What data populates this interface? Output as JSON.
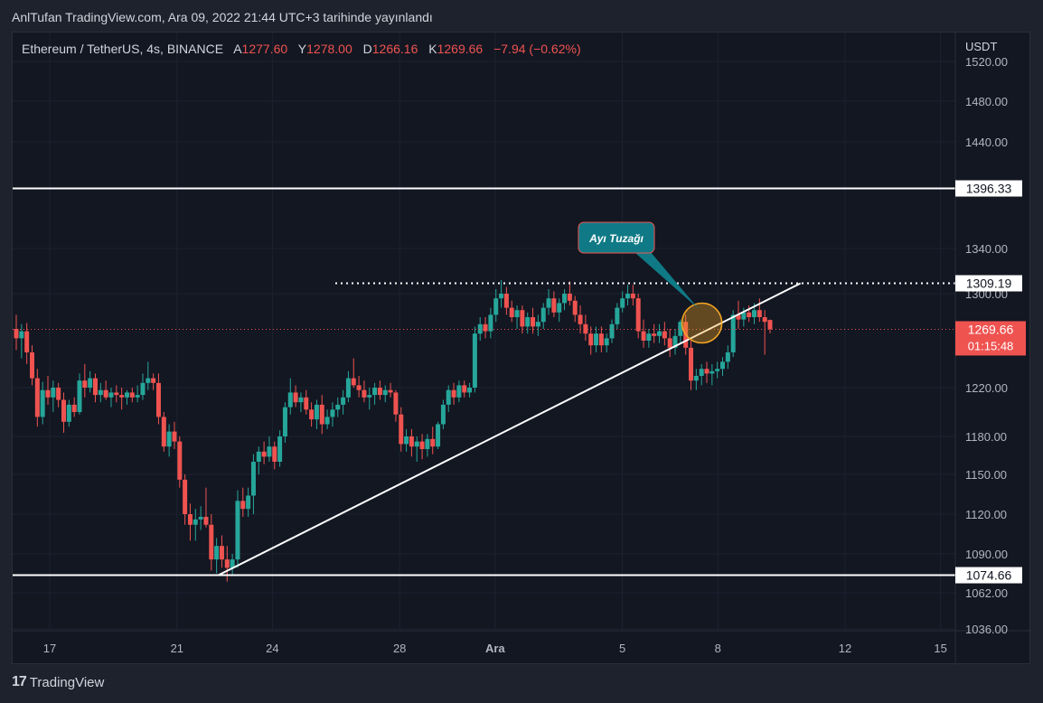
{
  "header": {
    "published": "AnlTufan TradingView.com, Ara 09, 2022 21:44 UTC+3 tarihinde yayınlandı"
  },
  "footer": {
    "brand": "TradingView"
  },
  "colors": {
    "up": "#26a69a",
    "down": "#ef5350",
    "background": "#131722",
    "text": "#d1d4dc",
    "line": "#ffffff"
  },
  "chart_data": {
    "type": "candlestick",
    "symbol": "Ethereum / TetherUS, 4s, BINANCE",
    "ohlc": {
      "a_label": "A",
      "a_value": "1277.60",
      "y_label": "Y",
      "y_value": "1278.00",
      "d_label": "D",
      "d_value": "1266.16",
      "k_label": "K",
      "k_value": "1269.66",
      "change": "−7.94 (−0.62%)"
    },
    "currency": "USDT",
    "y_ticks": [
      "1520.00",
      "1480.00",
      "1440.00",
      "1340.00",
      "1300.00",
      "1220.00",
      "1180.00",
      "1150.00",
      "1120.00",
      "1090.00",
      "1062.00",
      "1036.00"
    ],
    "x_ticks": [
      "17",
      "21",
      "24",
      "28",
      "Ara",
      "5",
      "8",
      "12",
      "15"
    ],
    "last_price": "1269.66",
    "countdown": "01:15:48",
    "levels": [
      {
        "price": 1396.33,
        "label": "1396.33",
        "style": "solid"
      },
      {
        "price": 1309.19,
        "label": "1309.19",
        "style": "dotted"
      },
      {
        "price": 1074.66,
        "label": "1074.66",
        "style": "solid"
      }
    ],
    "trendline": {
      "from": {
        "x": "Nov 22",
        "y": 1074.66
      },
      "to": {
        "x": "Dec 9",
        "y": 1309.19
      }
    },
    "annotation": {
      "text": "Ayı Tuzağı",
      "at": {
        "x": "Dec 7",
        "y": 1275
      }
    },
    "candles": [
      {
        "o": 1270,
        "h": 1282,
        "l": 1252,
        "c": 1262
      },
      {
        "o": 1262,
        "h": 1274,
        "l": 1245,
        "c": 1268
      },
      {
        "o": 1268,
        "h": 1275,
        "l": 1240,
        "c": 1250
      },
      {
        "o": 1250,
        "h": 1256,
        "l": 1222,
        "c": 1228
      },
      {
        "o": 1228,
        "h": 1236,
        "l": 1188,
        "c": 1196
      },
      {
        "o": 1196,
        "h": 1225,
        "l": 1190,
        "c": 1218
      },
      {
        "o": 1218,
        "h": 1230,
        "l": 1206,
        "c": 1212
      },
      {
        "o": 1212,
        "h": 1226,
        "l": 1200,
        "c": 1220
      },
      {
        "o": 1220,
        "h": 1224,
        "l": 1204,
        "c": 1210
      },
      {
        "o": 1210,
        "h": 1216,
        "l": 1183,
        "c": 1192
      },
      {
        "o": 1192,
        "h": 1210,
        "l": 1188,
        "c": 1206
      },
      {
        "o": 1206,
        "h": 1212,
        "l": 1196,
        "c": 1200
      },
      {
        "o": 1200,
        "h": 1232,
        "l": 1198,
        "c": 1226
      },
      {
        "o": 1226,
        "h": 1240,
        "l": 1212,
        "c": 1220
      },
      {
        "o": 1220,
        "h": 1234,
        "l": 1216,
        "c": 1228
      },
      {
        "o": 1228,
        "h": 1232,
        "l": 1208,
        "c": 1214
      },
      {
        "o": 1214,
        "h": 1224,
        "l": 1208,
        "c": 1218
      },
      {
        "o": 1218,
        "h": 1226,
        "l": 1210,
        "c": 1212
      },
      {
        "o": 1212,
        "h": 1220,
        "l": 1204,
        "c": 1216
      },
      {
        "o": 1216,
        "h": 1222,
        "l": 1208,
        "c": 1214
      },
      {
        "o": 1214,
        "h": 1220,
        "l": 1202,
        "c": 1212
      },
      {
        "o": 1212,
        "h": 1218,
        "l": 1206,
        "c": 1216
      },
      {
        "o": 1216,
        "h": 1220,
        "l": 1208,
        "c": 1212
      },
      {
        "o": 1212,
        "h": 1222,
        "l": 1208,
        "c": 1214
      },
      {
        "o": 1214,
        "h": 1232,
        "l": 1210,
        "c": 1224
      },
      {
        "o": 1224,
        "h": 1242,
        "l": 1218,
        "c": 1228
      },
      {
        "o": 1228,
        "h": 1232,
        "l": 1218,
        "c": 1224
      },
      {
        "o": 1224,
        "h": 1232,
        "l": 1190,
        "c": 1196
      },
      {
        "o": 1196,
        "h": 1200,
        "l": 1168,
        "c": 1172
      },
      {
        "o": 1172,
        "h": 1190,
        "l": 1164,
        "c": 1184
      },
      {
        "o": 1184,
        "h": 1192,
        "l": 1170,
        "c": 1176
      },
      {
        "o": 1176,
        "h": 1180,
        "l": 1140,
        "c": 1146
      },
      {
        "o": 1146,
        "h": 1150,
        "l": 1112,
        "c": 1120
      },
      {
        "o": 1120,
        "h": 1128,
        "l": 1100,
        "c": 1112
      },
      {
        "o": 1112,
        "h": 1124,
        "l": 1100,
        "c": 1116
      },
      {
        "o": 1116,
        "h": 1126,
        "l": 1108,
        "c": 1118
      },
      {
        "o": 1118,
        "h": 1140,
        "l": 1110,
        "c": 1112
      },
      {
        "o": 1112,
        "h": 1120,
        "l": 1078,
        "c": 1086
      },
      {
        "o": 1086,
        "h": 1102,
        "l": 1076,
        "c": 1096
      },
      {
        "o": 1096,
        "h": 1104,
        "l": 1080,
        "c": 1086
      },
      {
        "o": 1086,
        "h": 1096,
        "l": 1070,
        "c": 1080
      },
      {
        "o": 1080,
        "h": 1090,
        "l": 1074,
        "c": 1086
      },
      {
        "o": 1086,
        "h": 1138,
        "l": 1080,
        "c": 1130
      },
      {
        "o": 1130,
        "h": 1140,
        "l": 1118,
        "c": 1124
      },
      {
        "o": 1124,
        "h": 1140,
        "l": 1118,
        "c": 1134
      },
      {
        "o": 1134,
        "h": 1166,
        "l": 1120,
        "c": 1160
      },
      {
        "o": 1160,
        "h": 1172,
        "l": 1150,
        "c": 1168
      },
      {
        "o": 1168,
        "h": 1176,
        "l": 1158,
        "c": 1164
      },
      {
        "o": 1164,
        "h": 1180,
        "l": 1160,
        "c": 1172
      },
      {
        "o": 1172,
        "h": 1176,
        "l": 1154,
        "c": 1160
      },
      {
        "o": 1160,
        "h": 1185,
        "l": 1156,
        "c": 1180
      },
      {
        "o": 1180,
        "h": 1208,
        "l": 1175,
        "c": 1204
      },
      {
        "o": 1204,
        "h": 1228,
        "l": 1198,
        "c": 1216
      },
      {
        "o": 1216,
        "h": 1222,
        "l": 1204,
        "c": 1208
      },
      {
        "o": 1208,
        "h": 1216,
        "l": 1200,
        "c": 1212
      },
      {
        "o": 1212,
        "h": 1218,
        "l": 1198,
        "c": 1202
      },
      {
        "o": 1202,
        "h": 1208,
        "l": 1188,
        "c": 1194
      },
      {
        "o": 1194,
        "h": 1210,
        "l": 1186,
        "c": 1206
      },
      {
        "o": 1206,
        "h": 1214,
        "l": 1182,
        "c": 1190
      },
      {
        "o": 1190,
        "h": 1202,
        "l": 1186,
        "c": 1196
      },
      {
        "o": 1196,
        "h": 1208,
        "l": 1188,
        "c": 1202
      },
      {
        "o": 1202,
        "h": 1212,
        "l": 1196,
        "c": 1206
      },
      {
        "o": 1206,
        "h": 1218,
        "l": 1198,
        "c": 1212
      },
      {
        "o": 1212,
        "h": 1234,
        "l": 1208,
        "c": 1228
      },
      {
        "o": 1228,
        "h": 1245,
        "l": 1220,
        "c": 1222
      },
      {
        "o": 1222,
        "h": 1230,
        "l": 1212,
        "c": 1218
      },
      {
        "o": 1218,
        "h": 1226,
        "l": 1208,
        "c": 1212
      },
      {
        "o": 1212,
        "h": 1220,
        "l": 1202,
        "c": 1214
      },
      {
        "o": 1214,
        "h": 1224,
        "l": 1206,
        "c": 1220
      },
      {
        "o": 1220,
        "h": 1226,
        "l": 1210,
        "c": 1214
      },
      {
        "o": 1214,
        "h": 1222,
        "l": 1208,
        "c": 1218
      },
      {
        "o": 1218,
        "h": 1224,
        "l": 1212,
        "c": 1216
      },
      {
        "o": 1216,
        "h": 1218,
        "l": 1192,
        "c": 1198
      },
      {
        "o": 1198,
        "h": 1204,
        "l": 1168,
        "c": 1174
      },
      {
        "o": 1174,
        "h": 1186,
        "l": 1168,
        "c": 1180
      },
      {
        "o": 1180,
        "h": 1186,
        "l": 1164,
        "c": 1172
      },
      {
        "o": 1172,
        "h": 1180,
        "l": 1160,
        "c": 1176
      },
      {
        "o": 1176,
        "h": 1182,
        "l": 1162,
        "c": 1170
      },
      {
        "o": 1170,
        "h": 1182,
        "l": 1164,
        "c": 1178
      },
      {
        "o": 1178,
        "h": 1188,
        "l": 1166,
        "c": 1172
      },
      {
        "o": 1172,
        "h": 1192,
        "l": 1170,
        "c": 1190
      },
      {
        "o": 1190,
        "h": 1210,
        "l": 1186,
        "c": 1206
      },
      {
        "o": 1206,
        "h": 1222,
        "l": 1200,
        "c": 1218
      },
      {
        "o": 1218,
        "h": 1224,
        "l": 1206,
        "c": 1212
      },
      {
        "o": 1212,
        "h": 1226,
        "l": 1208,
        "c": 1222
      },
      {
        "o": 1222,
        "h": 1226,
        "l": 1212,
        "c": 1216
      },
      {
        "o": 1216,
        "h": 1224,
        "l": 1212,
        "c": 1220
      },
      {
        "o": 1220,
        "h": 1272,
        "l": 1216,
        "c": 1266
      },
      {
        "o": 1266,
        "h": 1280,
        "l": 1260,
        "c": 1274
      },
      {
        "o": 1274,
        "h": 1280,
        "l": 1262,
        "c": 1268
      },
      {
        "o": 1268,
        "h": 1288,
        "l": 1262,
        "c": 1282
      },
      {
        "o": 1282,
        "h": 1304,
        "l": 1276,
        "c": 1296
      },
      {
        "o": 1296,
        "h": 1312,
        "l": 1288,
        "c": 1300
      },
      {
        "o": 1300,
        "h": 1306,
        "l": 1282,
        "c": 1288
      },
      {
        "o": 1288,
        "h": 1294,
        "l": 1276,
        "c": 1280
      },
      {
        "o": 1280,
        "h": 1290,
        "l": 1270,
        "c": 1286
      },
      {
        "o": 1286,
        "h": 1290,
        "l": 1266,
        "c": 1272
      },
      {
        "o": 1272,
        "h": 1284,
        "l": 1266,
        "c": 1280
      },
      {
        "o": 1280,
        "h": 1288,
        "l": 1266,
        "c": 1272
      },
      {
        "o": 1272,
        "h": 1282,
        "l": 1264,
        "c": 1276
      },
      {
        "o": 1276,
        "h": 1292,
        "l": 1270,
        "c": 1288
      },
      {
        "o": 1288,
        "h": 1304,
        "l": 1282,
        "c": 1296
      },
      {
        "o": 1296,
        "h": 1302,
        "l": 1280,
        "c": 1284
      },
      {
        "o": 1284,
        "h": 1296,
        "l": 1276,
        "c": 1292
      },
      {
        "o": 1292,
        "h": 1304,
        "l": 1286,
        "c": 1300
      },
      {
        "o": 1300,
        "h": 1311,
        "l": 1290,
        "c": 1294
      },
      {
        "o": 1294,
        "h": 1298,
        "l": 1276,
        "c": 1282
      },
      {
        "o": 1282,
        "h": 1290,
        "l": 1266,
        "c": 1274
      },
      {
        "o": 1274,
        "h": 1282,
        "l": 1260,
        "c": 1266
      },
      {
        "o": 1266,
        "h": 1272,
        "l": 1248,
        "c": 1256
      },
      {
        "o": 1256,
        "h": 1272,
        "l": 1250,
        "c": 1266
      },
      {
        "o": 1266,
        "h": 1272,
        "l": 1250,
        "c": 1256
      },
      {
        "o": 1256,
        "h": 1266,
        "l": 1250,
        "c": 1262
      },
      {
        "o": 1262,
        "h": 1278,
        "l": 1258,
        "c": 1274
      },
      {
        "o": 1274,
        "h": 1292,
        "l": 1270,
        "c": 1288
      },
      {
        "o": 1288,
        "h": 1302,
        "l": 1284,
        "c": 1296
      },
      {
        "o": 1296,
        "h": 1308,
        "l": 1290,
        "c": 1300
      },
      {
        "o": 1300,
        "h": 1308,
        "l": 1290,
        "c": 1296
      },
      {
        "o": 1296,
        "h": 1300,
        "l": 1262,
        "c": 1268
      },
      {
        "o": 1268,
        "h": 1278,
        "l": 1254,
        "c": 1260
      },
      {
        "o": 1260,
        "h": 1270,
        "l": 1254,
        "c": 1266
      },
      {
        "o": 1266,
        "h": 1274,
        "l": 1258,
        "c": 1264
      },
      {
        "o": 1264,
        "h": 1274,
        "l": 1258,
        "c": 1268
      },
      {
        "o": 1268,
        "h": 1276,
        "l": 1256,
        "c": 1262
      },
      {
        "o": 1262,
        "h": 1270,
        "l": 1246,
        "c": 1254
      },
      {
        "o": 1254,
        "h": 1270,
        "l": 1248,
        "c": 1264
      },
      {
        "o": 1264,
        "h": 1278,
        "l": 1258,
        "c": 1276
      },
      {
        "o": 1276,
        "h": 1282,
        "l": 1248,
        "c": 1254
      },
      {
        "o": 1254,
        "h": 1262,
        "l": 1218,
        "c": 1226
      },
      {
        "o": 1226,
        "h": 1236,
        "l": 1218,
        "c": 1230
      },
      {
        "o": 1230,
        "h": 1240,
        "l": 1222,
        "c": 1236
      },
      {
        "o": 1236,
        "h": 1242,
        "l": 1224,
        "c": 1232
      },
      {
        "o": 1232,
        "h": 1240,
        "l": 1222,
        "c": 1234
      },
      {
        "o": 1234,
        "h": 1242,
        "l": 1228,
        "c": 1236
      },
      {
        "o": 1236,
        "h": 1246,
        "l": 1230,
        "c": 1242
      },
      {
        "o": 1242,
        "h": 1256,
        "l": 1236,
        "c": 1250
      },
      {
        "o": 1250,
        "h": 1286,
        "l": 1246,
        "c": 1282
      },
      {
        "o": 1282,
        "h": 1294,
        "l": 1270,
        "c": 1278
      },
      {
        "o": 1278,
        "h": 1288,
        "l": 1272,
        "c": 1284
      },
      {
        "o": 1284,
        "h": 1290,
        "l": 1276,
        "c": 1280
      },
      {
        "o": 1280,
        "h": 1292,
        "l": 1274,
        "c": 1286
      },
      {
        "o": 1286,
        "h": 1296,
        "l": 1276,
        "c": 1280
      },
      {
        "o": 1280,
        "h": 1286,
        "l": 1248,
        "c": 1276
      },
      {
        "o": 1277.6,
        "h": 1278,
        "l": 1266.16,
        "c": 1269.66
      }
    ]
  }
}
